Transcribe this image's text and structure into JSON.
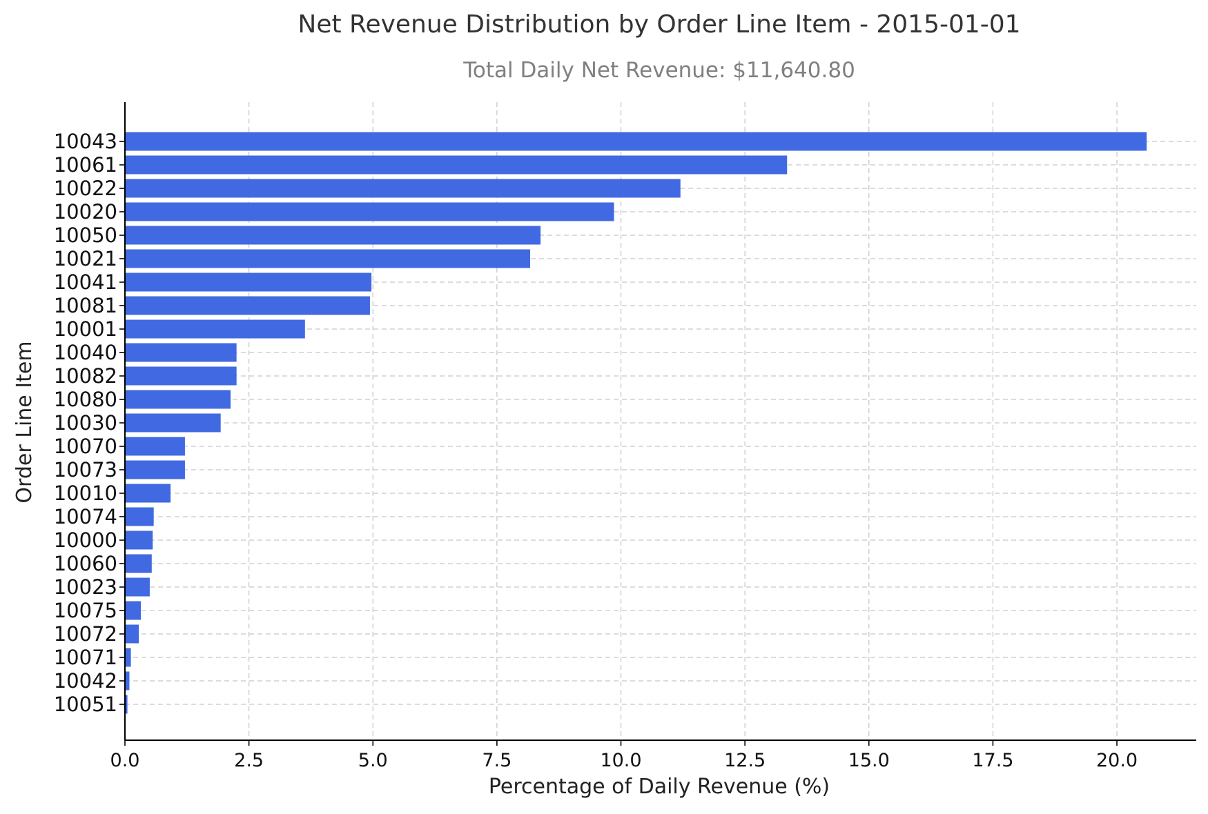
{
  "chart_data": {
    "type": "bar",
    "orientation": "horizontal",
    "title": "Net Revenue Distribution by Order Line Item - 2015-01-01",
    "subtitle": "Total Daily Net Revenue: $11,640.80",
    "xlabel": "Percentage of Daily Revenue (%)",
    "ylabel": "Order Line Item",
    "xlim": [
      0,
      21.6
    ],
    "xticks": [
      "0.0",
      "2.5",
      "5.0",
      "7.5",
      "10.0",
      "12.5",
      "15.0",
      "17.5",
      "20.0"
    ],
    "grid": true,
    "bar_color": "#4169e1",
    "categories": [
      "10043",
      "10061",
      "10022",
      "10020",
      "10050",
      "10021",
      "10041",
      "10081",
      "10001",
      "10040",
      "10082",
      "10080",
      "10030",
      "10070",
      "10073",
      "10010",
      "10074",
      "10000",
      "10060",
      "10023",
      "10075",
      "10072",
      "10071",
      "10042",
      "10051"
    ],
    "values": [
      20.6,
      13.35,
      11.2,
      9.86,
      8.38,
      8.17,
      4.97,
      4.94,
      3.63,
      2.25,
      2.25,
      2.13,
      1.93,
      1.21,
      1.21,
      0.92,
      0.58,
      0.56,
      0.54,
      0.5,
      0.32,
      0.28,
      0.12,
      0.09,
      0.05
    ]
  }
}
